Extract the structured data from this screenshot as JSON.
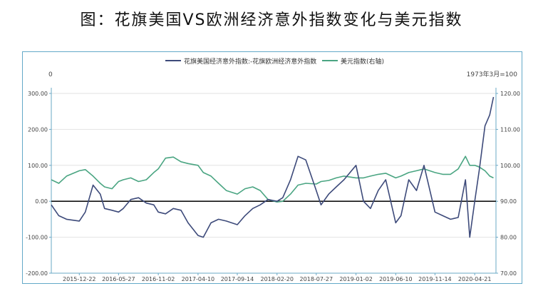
{
  "page": {
    "title": "图：花旗美国VS欧洲经济意外指数变化与美元指数"
  },
  "chart_data": {
    "type": "line",
    "legend_position": "top",
    "corner_left_label": "0",
    "corner_right_label": "1973年3月=100",
    "xlabel": "",
    "ylabel": "",
    "x_ticks": [
      "2015-12-22",
      "2016-05-27",
      "2016-11-02",
      "2017-04-10",
      "2017-09-14",
      "2018-02-20",
      "2018-07-27",
      "2019-01-02",
      "2019-06-10",
      "2019-11-14",
      "2020-04-21"
    ],
    "y_left": {
      "ticks": [
        "300.00",
        "200.00",
        "100.00",
        "0.00",
        "-100.00",
        "-200.00"
      ],
      "range": [
        -200,
        300
      ]
    },
    "y_right": {
      "ticks": [
        "120.00",
        "110.00",
        "100.00",
        "90.00",
        "80.00",
        "70.00"
      ],
      "range": [
        70,
        120
      ]
    },
    "grid": true,
    "colors": {
      "spread": "#3d4a7a",
      "dxy": "#4aa582",
      "zero_line": "#111111",
      "axis": "#6aa8c6"
    },
    "series": [
      {
        "name": "花旗美国经济意外指数:-花旗欧洲经济意外指数",
        "axis": "left",
        "x": [
          "2015-09-01",
          "2015-10-01",
          "2015-11-01",
          "2015-12-22",
          "2016-01-15",
          "2016-02-15",
          "2016-03-15",
          "2016-04-01",
          "2016-05-01",
          "2016-05-27",
          "2016-06-15",
          "2016-07-15",
          "2016-08-15",
          "2016-09-15",
          "2016-10-15",
          "2016-11-02",
          "2016-12-01",
          "2017-01-01",
          "2017-02-01",
          "2017-03-01",
          "2017-04-10",
          "2017-05-01",
          "2017-06-01",
          "2017-07-01",
          "2017-08-01",
          "2017-09-14",
          "2017-10-15",
          "2017-11-15",
          "2017-12-15",
          "2018-01-15",
          "2018-02-20",
          "2018-03-15",
          "2018-04-15",
          "2018-05-15",
          "2018-06-15",
          "2018-07-27",
          "2018-08-15",
          "2018-09-15",
          "2018-10-15",
          "2018-11-15",
          "2019-01-02",
          "2019-02-01",
          "2019-03-01",
          "2019-04-01",
          "2019-05-01",
          "2019-06-10",
          "2019-07-01",
          "2019-08-01",
          "2019-09-01",
          "2019-10-01",
          "2019-11-14",
          "2019-12-15",
          "2020-01-15",
          "2020-02-15",
          "2020-03-15",
          "2020-04-01",
          "2020-04-21",
          "2020-05-10",
          "2020-06-01",
          "2020-06-20",
          "2020-07-05"
        ],
        "values": [
          -10,
          -40,
          -50,
          -55,
          -30,
          45,
          20,
          -20,
          -25,
          -30,
          -20,
          5,
          10,
          -5,
          -10,
          -30,
          -35,
          -20,
          -25,
          -60,
          -95,
          -100,
          -60,
          -50,
          -55,
          -65,
          -40,
          -20,
          -10,
          5,
          0,
          10,
          60,
          125,
          115,
          30,
          -10,
          20,
          40,
          60,
          100,
          0,
          -20,
          30,
          60,
          -60,
          -40,
          60,
          30,
          100,
          -30,
          -40,
          -50,
          -45,
          60,
          -100,
          0,
          90,
          210,
          240,
          290
        ]
      },
      {
        "name": "美元指数(右轴)",
        "axis": "right",
        "x": [
          "2015-09-01",
          "2015-10-01",
          "2015-11-01",
          "2015-12-22",
          "2016-01-15",
          "2016-02-15",
          "2016-03-15",
          "2016-04-01",
          "2016-05-01",
          "2016-05-27",
          "2016-06-15",
          "2016-07-15",
          "2016-08-15",
          "2016-09-15",
          "2016-10-15",
          "2016-11-02",
          "2016-12-01",
          "2017-01-01",
          "2017-02-01",
          "2017-03-01",
          "2017-04-10",
          "2017-05-01",
          "2017-06-01",
          "2017-07-01",
          "2017-08-01",
          "2017-09-14",
          "2017-10-15",
          "2017-11-15",
          "2017-12-15",
          "2018-01-15",
          "2018-02-20",
          "2018-03-15",
          "2018-04-15",
          "2018-05-15",
          "2018-06-15",
          "2018-07-27",
          "2018-08-15",
          "2018-09-15",
          "2018-10-15",
          "2018-11-15",
          "2019-01-02",
          "2019-02-01",
          "2019-03-01",
          "2019-04-01",
          "2019-05-01",
          "2019-06-10",
          "2019-07-01",
          "2019-08-01",
          "2019-09-01",
          "2019-10-01",
          "2019-11-14",
          "2019-12-15",
          "2020-01-15",
          "2020-02-15",
          "2020-03-15",
          "2020-04-01",
          "2020-04-21",
          "2020-05-10",
          "2020-06-01",
          "2020-06-20",
          "2020-07-05"
        ],
        "values": [
          96,
          95,
          97,
          98.5,
          98.8,
          97,
          95,
          94,
          93.5,
          95.5,
          96,
          96.5,
          95.5,
          96,
          98,
          99,
          102,
          102.3,
          101,
          100.5,
          100,
          98,
          97,
          95,
          93,
          92,
          93.5,
          94,
          93,
          90.5,
          89.8,
          90,
          92,
          94.5,
          95,
          94.8,
          95.5,
          95.8,
          96.5,
          97,
          96.5,
          96.5,
          97,
          97.5,
          97.8,
          96.5,
          97,
          98,
          98.5,
          99,
          98,
          97.5,
          97.5,
          99,
          102.5,
          100,
          100,
          99.5,
          98.5,
          97,
          96.5
        ]
      }
    ]
  }
}
